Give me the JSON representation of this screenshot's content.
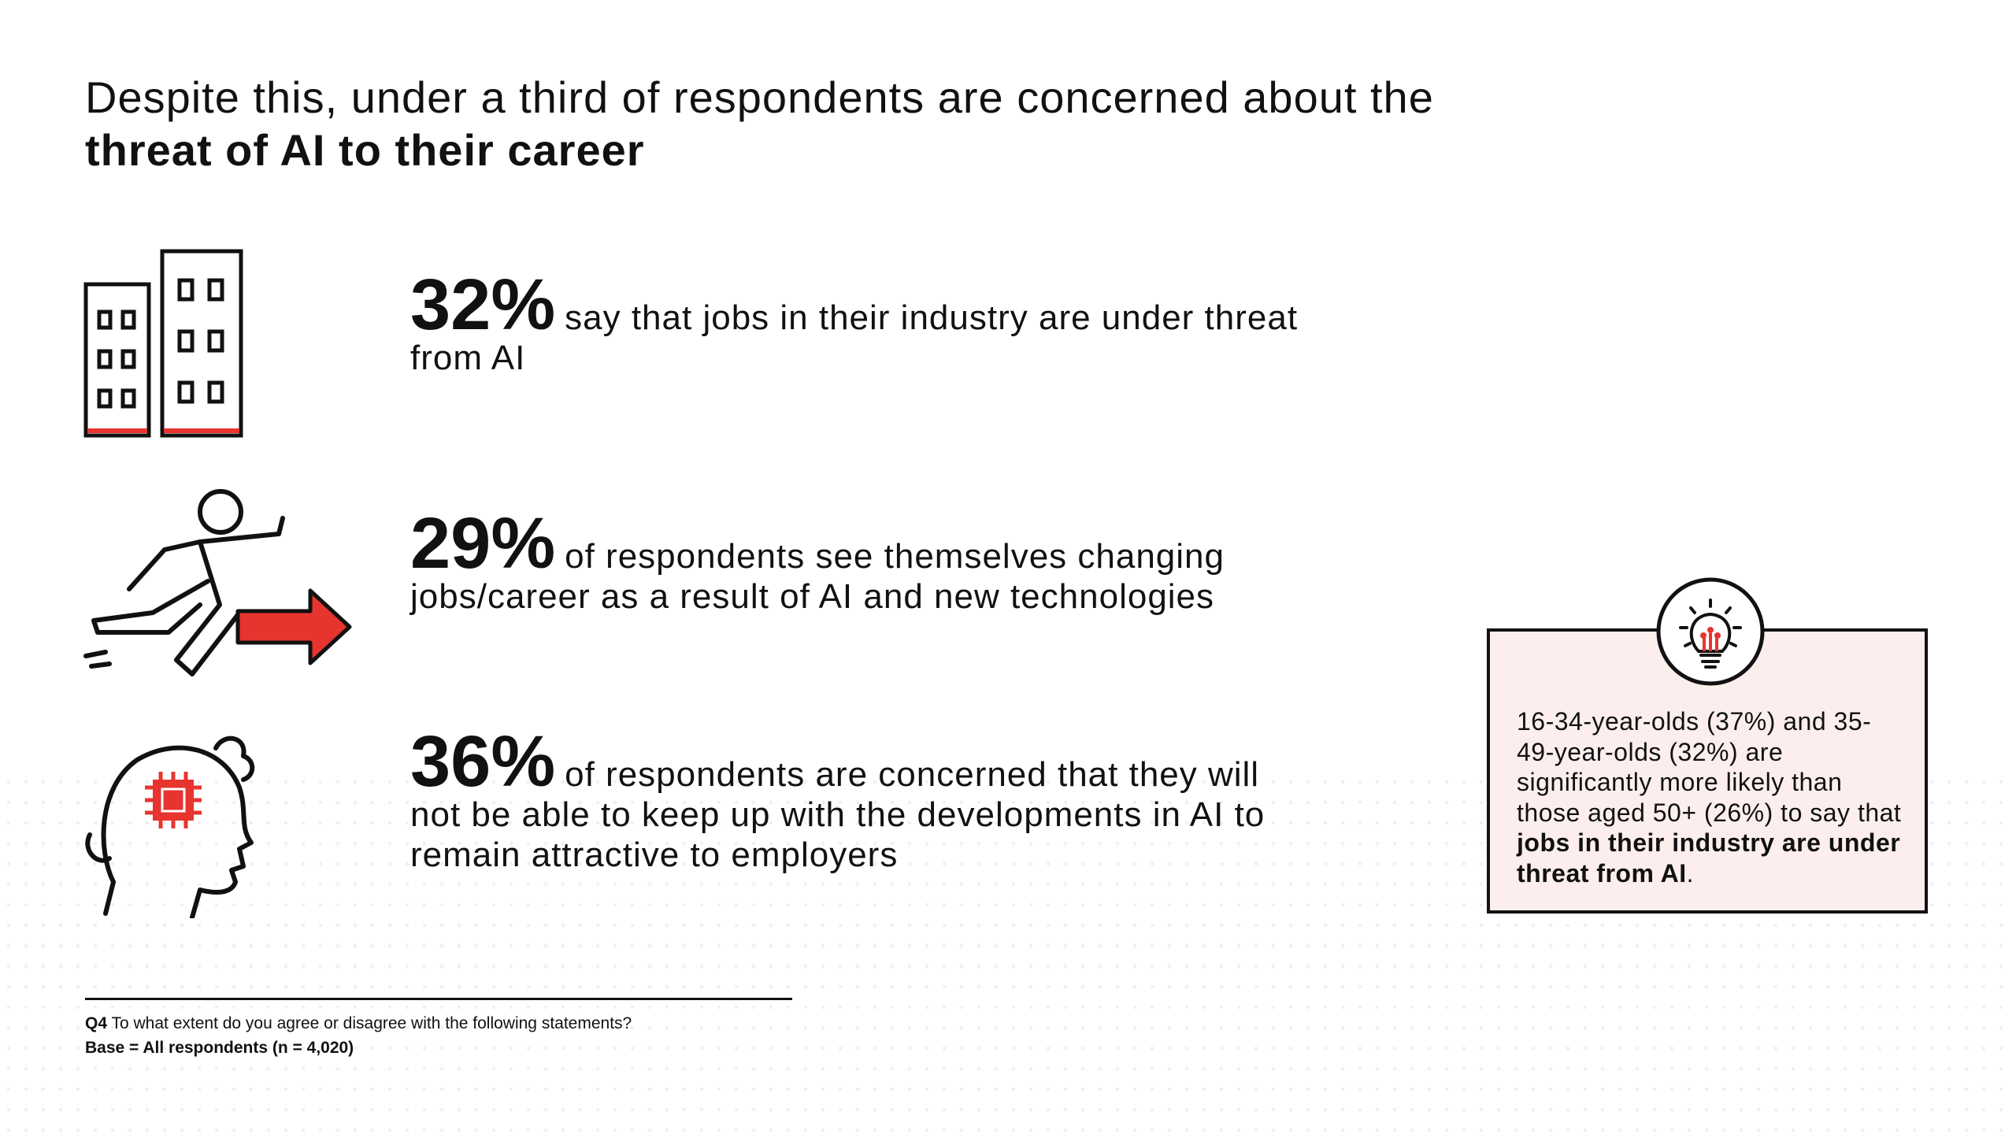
{
  "title": {
    "lead": "Despite this, under a third of respondents are concerned about the ",
    "emphasis": "threat of AI to their career"
  },
  "stats": [
    {
      "figure": "32%",
      "text": "say that jobs in their industry are under threat from AI"
    },
    {
      "figure": "29%",
      "text": "of respondents see themselves changing jobs/career as a result of AI and new technologies"
    },
    {
      "figure": "36%",
      "text": "of respondents are concerned that they will not be able to keep up with the developments in AI to remain attractive to employers"
    }
  ],
  "callout": {
    "lead": "16-34-year-olds (37%) and 35-49-year-olds (32%) are significantly more likely than those aged 50+ (26%) to say that ",
    "emphasis": "jobs in their industry are under threat from AI",
    "tail": "."
  },
  "footnote": {
    "question_id": "Q4",
    "question": "To what extent do you agree or disagree with the following statements?",
    "base": "Base = All respondents (n = 4,020)"
  }
}
